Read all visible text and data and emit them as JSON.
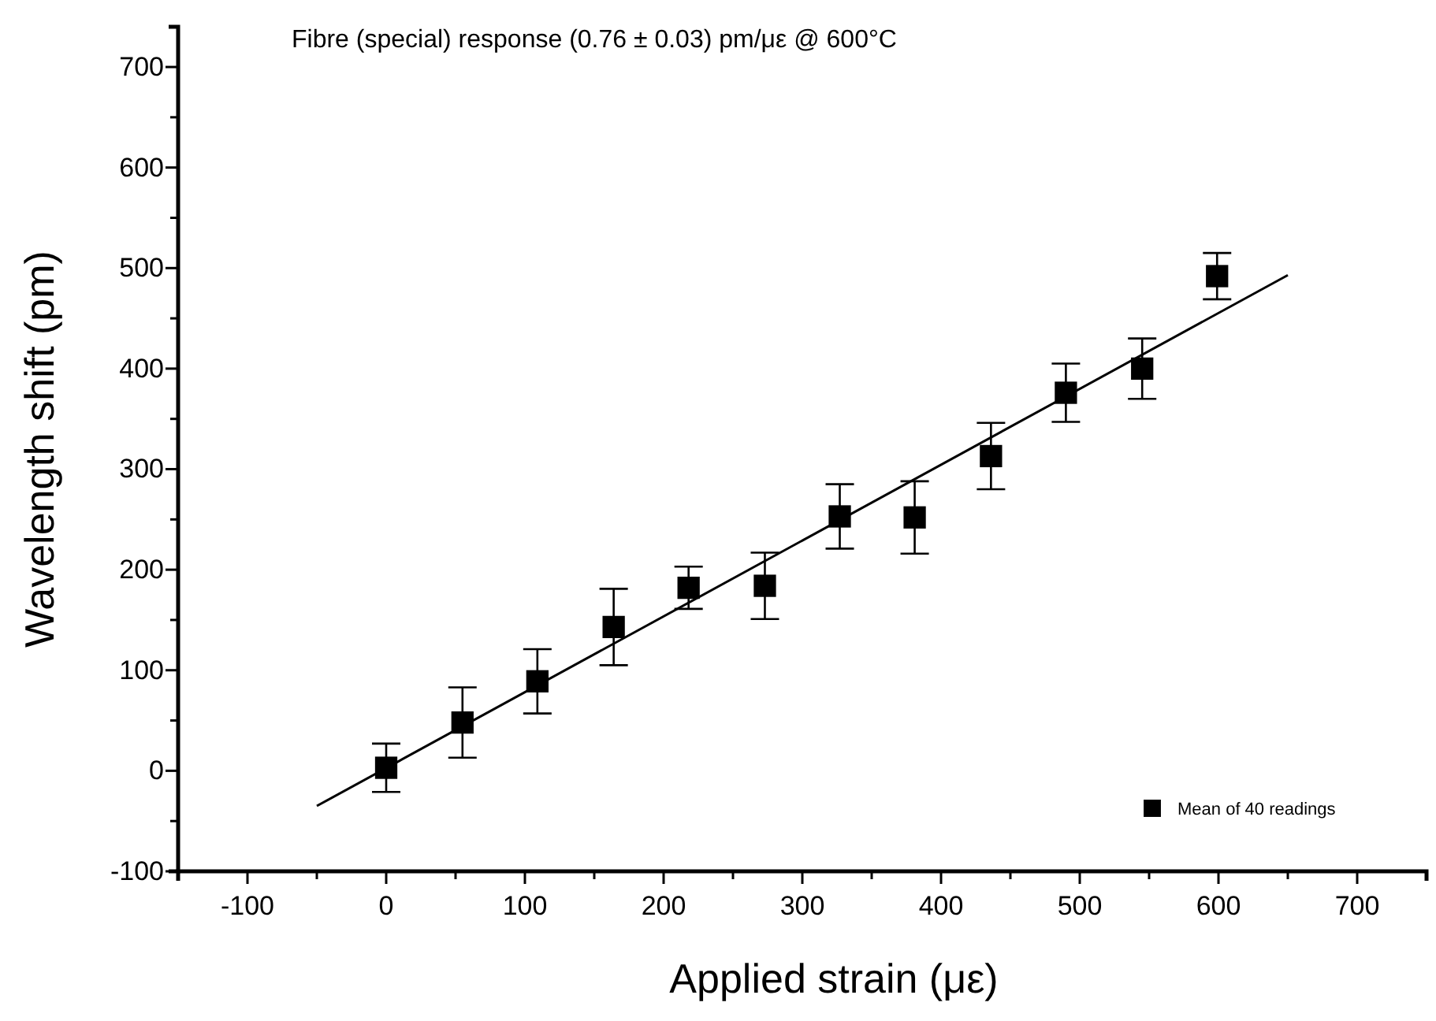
{
  "chart_data": {
    "type": "scatter",
    "title": "Fibre (special) response (0.76 ± 0.03) pm/με @ 600°C",
    "xlabel": "Applied strain (με)",
    "ylabel": "Wavelength shift (pm)",
    "xlim": [
      -150,
      750
    ],
    "ylim": [
      -100,
      740
    ],
    "xticks": [
      {
        "value": -150,
        "label": null
      },
      -100,
      {
        "value": -50,
        "label": null
      },
      0,
      {
        "value": 50,
        "label": null
      },
      100,
      {
        "value": 150,
        "label": null
      },
      200,
      {
        "value": 250,
        "label": null
      },
      300,
      {
        "value": 350,
        "label": null
      },
      400,
      {
        "value": 450,
        "label": null
      },
      500,
      {
        "value": 550,
        "label": null
      },
      600,
      {
        "value": 650,
        "label": null
      },
      700
    ],
    "yticks": [
      -100,
      {
        "value": -50,
        "label": null
      },
      0,
      {
        "value": 50,
        "label": null
      },
      100,
      {
        "value": 150,
        "label": null
      },
      200,
      {
        "value": 250,
        "label": null
      },
      300,
      {
        "value": 350,
        "label": null
      },
      400,
      {
        "value": 450,
        "label": null
      },
      500,
      {
        "value": 550,
        "label": null
      },
      600,
      {
        "value": 650,
        "label": null
      },
      700
    ],
    "grid": false,
    "legend": "bottom right",
    "marker": "square",
    "series": [
      {
        "name": "Mean of 40 readings",
        "color": "#000000",
        "x": [
          0,
          55,
          109,
          164,
          218,
          273,
          327,
          381,
          436,
          490,
          545,
          599
        ],
        "values": [
          3,
          48,
          89,
          143,
          182,
          184,
          253,
          252,
          313,
          376,
          400,
          492
        ],
        "errors": [
          24,
          35,
          32,
          38,
          21,
          33,
          32,
          36,
          33,
          29,
          30,
          23
        ]
      },
      {
        "type": "line",
        "color": "#000000",
        "x": [
          -50,
          650
        ],
        "values": [
          -35,
          493
        ],
        "marker": "none"
      }
    ]
  }
}
